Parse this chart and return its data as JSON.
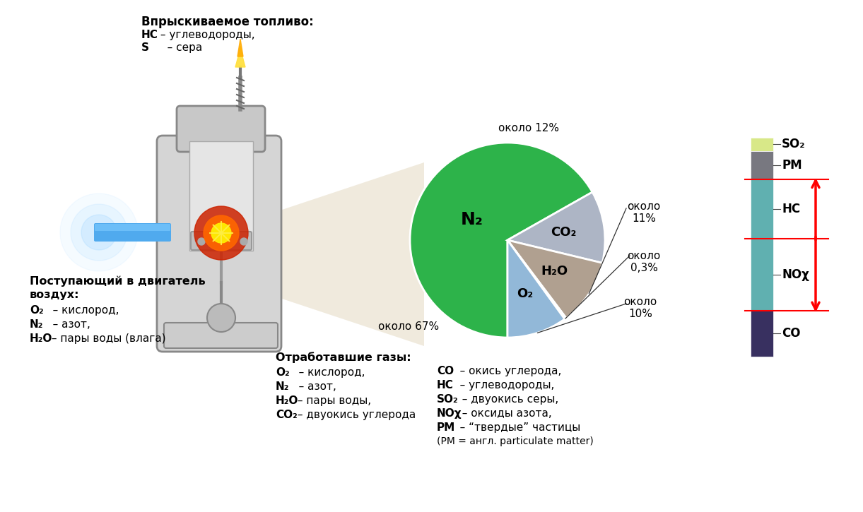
{
  "pie_values": [
    67,
    12,
    11,
    0.3,
    10
  ],
  "pie_labels": [
    "N₂",
    "CO₂",
    "H₂O",
    "",
    "O₂"
  ],
  "pie_colors": [
    "#2db34a",
    "#adb5c5",
    "#b0a090",
    "#e04020",
    "#92b8d8"
  ],
  "top_left_title": "Впрыскиваемое топливо:",
  "top_left_lines": [
    [
      "HC",
      " – углеводороды,"
    ],
    [
      "S",
      "   – сера"
    ]
  ],
  "bottom_left_title": "Поступающий в двигатель",
  "bottom_left_title2": "воздух:",
  "bottom_left_lines": [
    [
      "O₂",
      "   – кислород,"
    ],
    [
      "N₂",
      "   – азот,"
    ],
    [
      "H₂O",
      " – пары воды (влага)"
    ]
  ],
  "bottom_center_title": "Отработавшие газы:",
  "bottom_center_lines": [
    [
      "O₂",
      "   – кислород,"
    ],
    [
      "N₂",
      "   – азот,"
    ],
    [
      "H₂O",
      " – пары воды,"
    ],
    [
      "CO₂",
      " – двуокись углерода"
    ]
  ],
  "bottom_right_lines": [
    [
      "CO",
      "   – окись углерода,"
    ],
    [
      "HC",
      "   – углеводороды,"
    ],
    [
      "SO₂",
      "  – двуокись серы,"
    ],
    [
      "NOχ",
      "  – оксиды азота,"
    ],
    [
      "PM",
      "   – “твердые” частицы"
    ],
    [
      "(PM = англ. particulate matter)",
      ""
    ]
  ],
  "bar_colors_top_to_bottom": [
    "#d8e888",
    "#787880",
    "#60b0b0",
    "#60b0b0",
    "#383060"
  ],
  "bar_labels_top_to_bottom": [
    "SO₂",
    "PM",
    "HC",
    "NOχ",
    "CO"
  ],
  "bg_color": "#ffffff"
}
